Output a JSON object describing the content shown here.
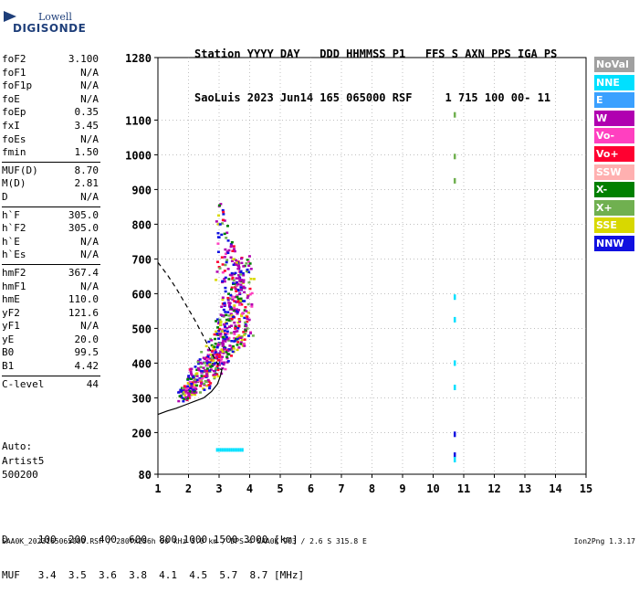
{
  "logo": {
    "line1": "Lowell",
    "line2": "DIGISONDE"
  },
  "header": {
    "line1": "Station YYYY DAY   DDD HHMMSS P1   FFS S AXN PPS IGA PS",
    "line2": "SaoLuis 2023 Jun14 165 065000 RSF     1 715 100 00- 11"
  },
  "params": [
    {
      "group": [
        {
          "k": "foF2",
          "v": "3.100"
        },
        {
          "k": "foF1",
          "v": "N/A"
        },
        {
          "k": "foF1p",
          "v": "N/A"
        },
        {
          "k": "foE",
          "v": "N/A"
        },
        {
          "k": "foEp",
          "v": "0.35"
        },
        {
          "k": "fxI",
          "v": "3.45"
        },
        {
          "k": "foEs",
          "v": "N/A"
        },
        {
          "k": "fmin",
          "v": "1.50"
        }
      ]
    },
    {
      "group": [
        {
          "k": "MUF(D)",
          "v": "8.70"
        },
        {
          "k": "M(D)",
          "v": "2.81"
        },
        {
          "k": "D",
          "v": "N/A"
        }
      ]
    },
    {
      "group": [
        {
          "k": "h`F",
          "v": "305.0"
        },
        {
          "k": "h`F2",
          "v": "305.0"
        },
        {
          "k": "h`E",
          "v": "N/A"
        },
        {
          "k": "h`Es",
          "v": "N/A"
        }
      ]
    },
    {
      "group": [
        {
          "k": "hmF2",
          "v": "367.4"
        },
        {
          "k": "hmF1",
          "v": "N/A"
        },
        {
          "k": "hmE",
          "v": "110.0"
        },
        {
          "k": "yF2",
          "v": "121.6"
        },
        {
          "k": "yF1",
          "v": "N/A"
        },
        {
          "k": "yE",
          "v": "20.0"
        },
        {
          "k": "B0",
          "v": "99.5"
        },
        {
          "k": "B1",
          "v": "4.42"
        }
      ]
    },
    {
      "group": [
        {
          "k": "C-level",
          "v": "44"
        }
      ]
    }
  ],
  "auto": {
    "line1": "Auto:",
    "line2": "Artist5",
    "line3": "500200"
  },
  "legend": [
    {
      "label": "NoVal",
      "color": "#a0a0a0"
    },
    {
      "label": "NNE",
      "color": "#00e0ff"
    },
    {
      "label": "E",
      "color": "#3aa0ff"
    },
    {
      "label": "W",
      "color": "#b000b0"
    },
    {
      "label": "Vo-",
      "color": "#ff40c0"
    },
    {
      "label": "Vo+",
      "color": "#ff0030"
    },
    {
      "label": "SSW",
      "color": "#ffb0b0"
    },
    {
      "label": "X-",
      "color": "#008000"
    },
    {
      "label": "X+",
      "color": "#70b050"
    },
    {
      "label": "SSE",
      "color": "#d8d800"
    },
    {
      "label": "NNW",
      "color": "#1010e0"
    }
  ],
  "footer": {
    "line1": "D     100  200  400  600  800 1000 1500 3000 [km]",
    "line2": "MUF   3.4  3.5  3.6  3.8  4.1  4.5  5.7  8.7 [MHz]",
    "file": "SAA0K_2023165065000.RSF / 280fx256h 50 kHz 5.0 km / DPS-4 SAA0K 903 / 2.6 S 315.8 E",
    "version": "Ion2Png 1.3.17"
  },
  "chart_data": {
    "type": "scatter",
    "title": "",
    "xlabel": "",
    "ylabel": "",
    "xlim": [
      1,
      15
    ],
    "ylim": [
      80,
      1280
    ],
    "x_ticks": [
      1,
      2,
      3,
      4,
      5,
      6,
      7,
      8,
      9,
      10,
      11,
      12,
      13,
      14,
      15
    ],
    "y_ticks": [
      80,
      200,
      300,
      400,
      500,
      600,
      700,
      800,
      900,
      1000,
      1100,
      1280
    ],
    "grid": true,
    "echo_trace": {
      "name": "",
      "x": [
        1.75,
        1.9,
        2.1,
        2.3,
        2.5,
        2.7,
        2.85,
        3.0,
        3.1,
        3.2,
        3.35,
        3.5,
        3.65,
        3.8,
        3.95
      ],
      "y": [
        300,
        315,
        330,
        345,
        360,
        380,
        400,
        425,
        440,
        460,
        480,
        500,
        520,
        540,
        555
      ]
    },
    "isolated_echoes": [
      {
        "x": 10.7,
        "y": 1115,
        "color": "#70b050"
      },
      {
        "x": 10.7,
        "y": 995,
        "color": "#70b050"
      },
      {
        "x": 10.7,
        "y": 925,
        "color": "#70b050"
      },
      {
        "x": 10.7,
        "y": 590,
        "color": "#00e0ff"
      },
      {
        "x": 10.7,
        "y": 525,
        "color": "#00e0ff"
      },
      {
        "x": 10.7,
        "y": 400,
        "color": "#00e0ff"
      },
      {
        "x": 10.7,
        "y": 330,
        "color": "#00e0ff"
      },
      {
        "x": 10.7,
        "y": 195,
        "color": "#1010e0"
      },
      {
        "x": 10.7,
        "y": 135,
        "color": "#1010e0"
      },
      {
        "x": 10.7,
        "y": 122,
        "color": "#00e0ff"
      }
    ],
    "low_band": {
      "x_start": 2.9,
      "x_end": 3.75,
      "y": 150,
      "color": "#00e0ff"
    },
    "ordinary_trace_solid": {
      "x": [
        1.0,
        1.3,
        1.6,
        1.9,
        2.2,
        2.5,
        2.75,
        2.95,
        3.05,
        3.1
      ],
      "y": [
        252,
        262,
        270,
        280,
        290,
        300,
        318,
        340,
        365,
        385
      ]
    },
    "profile_dashed": {
      "x": [
        1.0,
        1.3,
        1.6,
        1.9,
        2.2,
        2.5,
        2.75,
        2.95,
        3.05,
        3.1
      ],
      "y": [
        690,
        655,
        615,
        570,
        525,
        475,
        430,
        398,
        382,
        380
      ]
    }
  }
}
